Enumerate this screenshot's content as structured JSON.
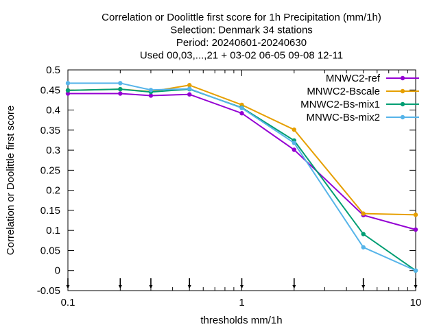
{
  "chart_data": {
    "type": "line",
    "title_lines": [
      "Correlation or Doolittle first score  for 1h Precipitation (mm/1h)",
      "Selection: Denmark     34 stations",
      "Period: 20240601-20240630",
      "Used 00,03,...,21 + 03-02 06-05 09-08 12-11"
    ],
    "xlabel": "thresholds mm/1h",
    "ylabel": "Correlation or Doolittle first score",
    "x_scale": "log",
    "xlim": [
      0.1,
      10
    ],
    "ylim": [
      -0.05,
      0.5
    ],
    "x_ticks": [
      0.1,
      1,
      10
    ],
    "x_tick_labels": [
      "0.1",
      "1",
      "10"
    ],
    "y_ticks": [
      -0.05,
      0,
      0.05,
      0.1,
      0.15,
      0.2,
      0.25,
      0.3,
      0.35,
      0.4,
      0.45,
      0.5
    ],
    "y_tick_labels": [
      "-0.05",
      "0",
      "0.05",
      "0.1",
      "0.15",
      "0.2",
      "0.25",
      "0.3",
      "0.35",
      "0.4",
      "0.45",
      "0.5"
    ],
    "threshold_markers": [
      0.1,
      0.2,
      0.3,
      0.5,
      1,
      2,
      5,
      10
    ],
    "legend_position": "top-right",
    "grid": false,
    "series": [
      {
        "name": "MNWC2-ref",
        "color": "#9400d3",
        "x": [
          0.1,
          0.2,
          0.3,
          0.5,
          1,
          2,
          5,
          10
        ],
        "values": [
          0.441,
          0.441,
          0.436,
          0.439,
          0.392,
          0.301,
          0.138,
          0.102
        ]
      },
      {
        "name": "MNWC2-Bscale",
        "color": "#e69f00",
        "x": [
          0.1,
          0.2,
          0.3,
          0.5,
          1,
          2,
          5,
          10
        ],
        "values": [
          0.449,
          0.452,
          0.446,
          0.462,
          0.413,
          0.351,
          0.142,
          0.139
        ]
      },
      {
        "name": "MNWC2-Bs-mix1",
        "color": "#009e73",
        "x": [
          0.1,
          0.2,
          0.3,
          0.5,
          1,
          2,
          5,
          10
        ],
        "values": [
          0.449,
          0.452,
          0.445,
          0.452,
          0.406,
          0.324,
          0.091,
          0.0
        ]
      },
      {
        "name": "MNWC-Bs-mix2",
        "color": "#56b4e9",
        "x": [
          0.1,
          0.2,
          0.3,
          0.5,
          1,
          2,
          5,
          10
        ],
        "values": [
          0.467,
          0.467,
          0.45,
          0.453,
          0.405,
          0.318,
          0.058,
          0.0
        ]
      }
    ]
  }
}
